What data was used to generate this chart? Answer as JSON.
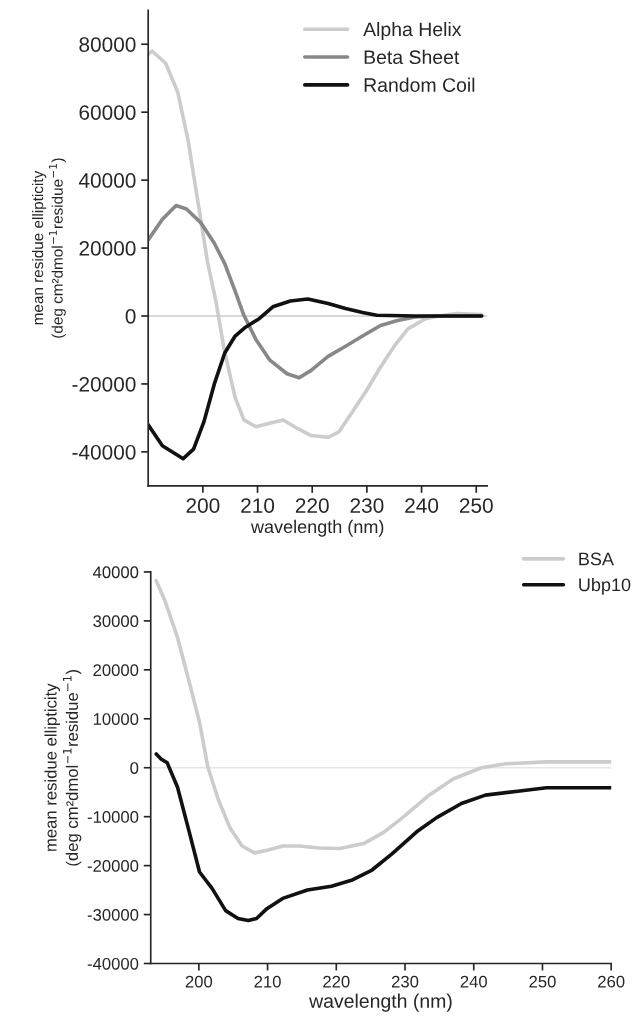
{
  "chart_data": [
    {
      "type": "line",
      "xlabel": "wavelength (nm)",
      "ylabel": "mean residue ellipticity\n(deg cm²dmol$^{−1}$residue$^{−1}$)",
      "xlim": [
        190,
        252
      ],
      "xticks": [
        200,
        210,
        220,
        230,
        240,
        250
      ],
      "ylim": [
        -50000,
        90000
      ],
      "yticks": [
        -40000,
        -20000,
        0,
        20000,
        40000,
        60000,
        80000
      ],
      "legend": "top right",
      "grid": false,
      "ref_lines": [
        {
          "axis": "y",
          "value": 0,
          "color": "#cccccc"
        }
      ],
      "series": [
        {
          "name": "Alpha Helix",
          "color": "#cccccc",
          "x": [
            190,
            190.7,
            193.2,
            195.4,
            197.3,
            198.9,
            200.8,
            202.4,
            203.9,
            205.9,
            207.5,
            209.7,
            212.2,
            214.7,
            217.3,
            219.8,
            222.9,
            224.9,
            227.4,
            229.9,
            232.5,
            235,
            237.5,
            240.7,
            243.2,
            246.3,
            251
          ],
          "values": [
            77000,
            78000,
            74400,
            65900,
            51700,
            35600,
            16400,
            4200,
            -9900,
            -24000,
            -30600,
            -32600,
            -31600,
            -30600,
            -33100,
            -35200,
            -35700,
            -34100,
            -28100,
            -22000,
            -15000,
            -8900,
            -3800,
            -800,
            0,
            700,
            400
          ]
        },
        {
          "name": "Beta Sheet",
          "color": "#888888",
          "x": [
            190,
            192.6,
            195.1,
            197,
            199.6,
            202.1,
            204,
            205.9,
            207.5,
            209.7,
            212.2,
            215.4,
            217.6,
            219.8,
            222.9,
            226.1,
            229.2,
            232.5,
            235.6,
            238.8,
            242.6,
            251
          ],
          "values": [
            22400,
            28500,
            32500,
            31500,
            27500,
            21400,
            15400,
            7300,
            200,
            -6900,
            -12900,
            -17000,
            -18200,
            -16000,
            -11900,
            -8900,
            -5900,
            -2800,
            -1300,
            -300,
            0,
            0
          ]
        },
        {
          "name": "Random Coil",
          "color": "#111111",
          "x": [
            190,
            192.6,
            196.4,
            198.3,
            200.2,
            202.1,
            204,
            205.9,
            207.8,
            210.3,
            212.8,
            216,
            219.2,
            222.9,
            226.1,
            229.2,
            231.8,
            238.8,
            251
          ],
          "values": [
            -32000,
            -38200,
            -42000,
            -39200,
            -31100,
            -20000,
            -10900,
            -5900,
            -3300,
            -800,
            2700,
            4400,
            5000,
            3700,
            2200,
            1000,
            200,
            0,
            0
          ]
        }
      ]
    },
    {
      "type": "line",
      "xlabel": "wavelength (nm)",
      "ylabel": "mean residue ellipticity\n(deg cm²dmol$^{−1}$residue$^{−1}$)",
      "xlim": [
        193,
        260
      ],
      "xticks": [
        200,
        210,
        220,
        230,
        240,
        250,
        260
      ],
      "ylim": [
        -40000,
        40000
      ],
      "yticks": [
        -40000,
        -30000,
        -20000,
        -10000,
        0,
        10000,
        20000,
        30000,
        40000
      ],
      "legend": "top right",
      "grid": false,
      "ref_lines": [
        {
          "axis": "y",
          "value": 0,
          "color": "#e6e6e6"
        }
      ],
      "series": [
        {
          "name": "BSA",
          "color": "#cccccc",
          "x": [
            193.8,
            195.1,
            196.9,
            198.6,
            200.1,
            201.3,
            202.8,
            204.5,
            206.3,
            208.1,
            210.1,
            212.2,
            214.6,
            217.5,
            220.5,
            224,
            227,
            230,
            233.5,
            237,
            241.1,
            244.7,
            250.6,
            260
          ],
          "values": [
            38200,
            34000,
            26600,
            17500,
            9300,
            200,
            -6400,
            -12200,
            -16000,
            -17400,
            -16800,
            -16000,
            -16000,
            -16400,
            -16500,
            -15500,
            -13100,
            -9800,
            -5600,
            -2300,
            0,
            800,
            1200,
            1200
          ]
        },
        {
          "name": "Ubp10",
          "color": "#111111",
          "x": [
            193.8,
            194.5,
            195.4,
            196.9,
            198.6,
            200.1,
            201.9,
            203.9,
            205.7,
            207.2,
            208.4,
            209.9,
            212.2,
            215.8,
            219.3,
            222.2,
            225.2,
            228.1,
            231.7,
            234.6,
            238.2,
            241.7,
            246.4,
            250.6,
            260
          ],
          "values": [
            2800,
            1800,
            1000,
            -4000,
            -13100,
            -21300,
            -24600,
            -29200,
            -30800,
            -31200,
            -30800,
            -28800,
            -26700,
            -25000,
            -24200,
            -23000,
            -20900,
            -17600,
            -13100,
            -10200,
            -7300,
            -5600,
            -4800,
            -4100,
            -4100
          ]
        }
      ]
    }
  ]
}
